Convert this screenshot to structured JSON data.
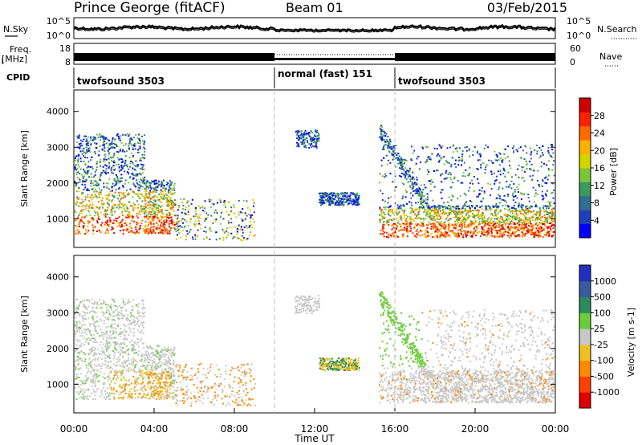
{
  "header": {
    "station": "Prince George (fitACF)",
    "beam": "Beam 01",
    "date": "03/Feb/2015"
  },
  "nsky_panel": {
    "left_label": "N.Sky",
    "left_ticks": [
      "10^5",
      "10^0"
    ],
    "right_label": "N.Search",
    "right_ticks": [
      "10^5",
      "10^0"
    ]
  },
  "freq_panel": {
    "left_label_1": "Freq.",
    "left_label_2": "[MHz]",
    "left_ticks": [
      "18",
      "8"
    ],
    "right_label": "Nave",
    "right_ticks": [
      "60",
      "0"
    ]
  },
  "cpid_panel": {
    "label": "CPID",
    "segments": [
      {
        "text": "twofsound 3503",
        "start_h": 0,
        "end_h": 10
      },
      {
        "text": "normal (fast) 151",
        "start_h": 10,
        "end_h": 16
      },
      {
        "text": "twofsound 3503",
        "start_h": 16,
        "end_h": 24
      }
    ]
  },
  "chart_data": [
    {
      "type": "heatmap",
      "name": "power",
      "ylabel": "Slant Range [km]",
      "yticks": [
        "1000",
        "2000",
        "3000",
        "4000"
      ],
      "ylim": [
        200,
        4600
      ],
      "xlim_hours": [
        0,
        24
      ],
      "colorbar": {
        "label": "Power [dB]",
        "ticks": [
          "4",
          "8",
          "12",
          "16",
          "20",
          "24",
          "28"
        ],
        "colors": [
          "#0000ff",
          "#1f3fb8",
          "#2e6e8f",
          "#3c9a5a",
          "#7cc43a",
          "#d4d400",
          "#ffb000",
          "#ff6a00",
          "#ff2000",
          "#d00000"
        ]
      }
    },
    {
      "type": "heatmap",
      "name": "velocity",
      "ylabel": "Slant Range [km]",
      "yticks": [
        "1000",
        "2000",
        "3000",
        "4000"
      ],
      "ylim": [
        200,
        4600
      ],
      "xlim_hours": [
        0,
        24
      ],
      "xticks": [
        "00:00",
        "04:00",
        "08:00",
        "12:00",
        "16:00",
        "20:00",
        "00:00"
      ],
      "xlabel": "Time UT",
      "colorbar": {
        "label": "Velocity [m s-1]",
        "ticks": [
          "1000",
          "500",
          "100",
          "25",
          "-25",
          "-100",
          "-500",
          "-1000"
        ],
        "colors": [
          "#2030c0",
          "#3a5aa0",
          "#2e8a5a",
          "#6ccc3a",
          "#c8c8c8",
          "#f0c020",
          "#ff8a00",
          "#ff4000",
          "#e00000"
        ]
      }
    }
  ],
  "colors": {
    "axis": "#000000",
    "mode_divider": "#c0c0c0",
    "nsky_trace": "#000000"
  }
}
